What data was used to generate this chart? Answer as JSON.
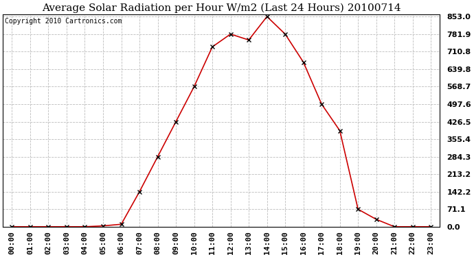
{
  "title": "Average Solar Radiation per Hour W/m2 (Last 24 Hours) 20100714",
  "copyright": "Copyright 2010 Cartronics.com",
  "x_labels": [
    "00:00",
    "01:00",
    "02:00",
    "03:00",
    "04:00",
    "05:00",
    "06:00",
    "07:00",
    "08:00",
    "09:00",
    "10:00",
    "11:00",
    "12:00",
    "13:00",
    "14:00",
    "15:00",
    "16:00",
    "17:00",
    "18:00",
    "19:00",
    "20:00",
    "21:00",
    "22:00",
    "23:00"
  ],
  "y_values": [
    0.0,
    0.0,
    0.0,
    0.0,
    0.0,
    3.5,
    10.0,
    142.2,
    284.3,
    426.5,
    568.7,
    730.0,
    781.9,
    758.0,
    853.0,
    781.9,
    668.0,
    497.6,
    390.0,
    71.1,
    30.0,
    0.0,
    0.0,
    0.0
  ],
  "line_color": "#cc0000",
  "marker": "x",
  "marker_color": "#000000",
  "background_color": "#ffffff",
  "grid_color": "#bbbbbb",
  "title_fontsize": 11,
  "copyright_fontsize": 7,
  "tick_label_fontsize": 8,
  "ytick_values": [
    0.0,
    71.1,
    142.2,
    213.2,
    284.3,
    355.4,
    426.5,
    497.6,
    568.7,
    639.8,
    710.8,
    781.9,
    853.0
  ],
  "ymax": 853.0,
  "ymin": 0.0
}
